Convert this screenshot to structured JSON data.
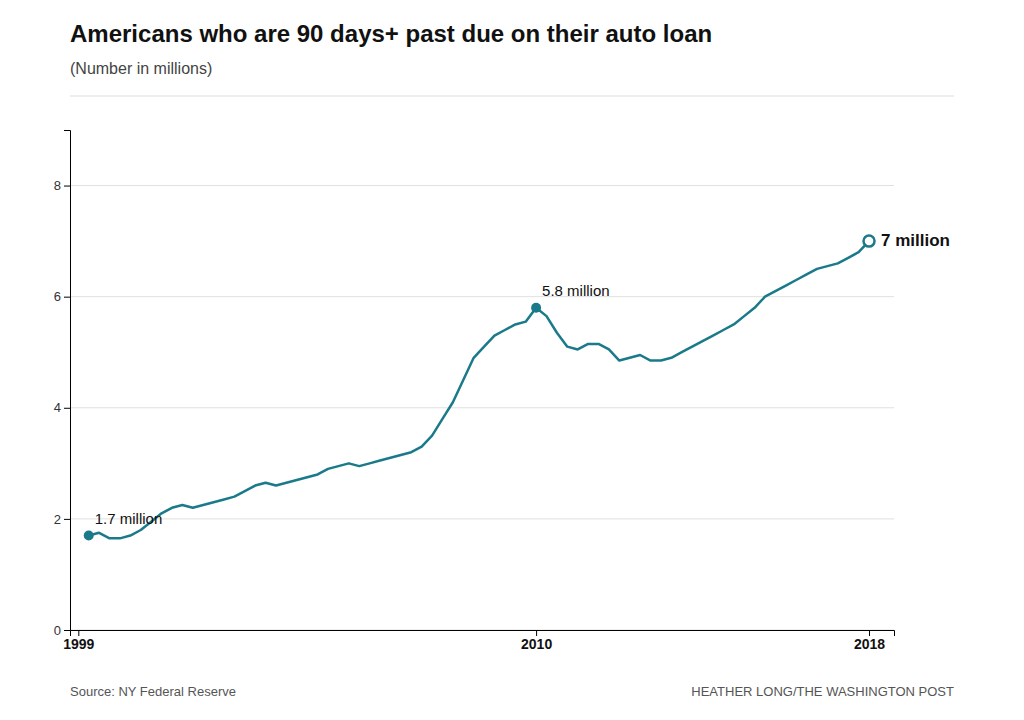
{
  "chart_data": {
    "type": "line",
    "title": "Americans who are 90 days+ past due on their auto loan",
    "subtitle": "(Number in millions)",
    "source": "Source: NY Federal Reserve",
    "credit": "HEATHER LONG/THE WASHINGTON POST",
    "color": "#1a7a8a",
    "x": [
      1999.25,
      1999.5,
      1999.75,
      2000.0,
      2000.25,
      2000.5,
      2000.75,
      2001.0,
      2001.25,
      2001.5,
      2001.75,
      2002.0,
      2002.25,
      2002.5,
      2002.75,
      2003.0,
      2003.25,
      2003.5,
      2003.75,
      2004.0,
      2004.25,
      2004.5,
      2004.75,
      2005.0,
      2005.25,
      2005.5,
      2005.75,
      2006.0,
      2006.25,
      2006.5,
      2006.75,
      2007.0,
      2007.25,
      2007.5,
      2007.75,
      2008.0,
      2008.25,
      2008.5,
      2008.75,
      2009.0,
      2009.25,
      2009.5,
      2009.75,
      2010.0,
      2010.25,
      2010.5,
      2010.75,
      2011.0,
      2011.25,
      2011.5,
      2011.75,
      2012.0,
      2012.25,
      2012.5,
      2012.75,
      2013.0,
      2013.25,
      2013.5,
      2013.75,
      2014.0,
      2014.25,
      2014.5,
      2014.75,
      2015.0,
      2015.25,
      2015.5,
      2015.75,
      2016.0,
      2016.25,
      2016.5,
      2016.75,
      2017.0,
      2017.25,
      2017.5,
      2017.75,
      2018.0
    ],
    "values": [
      1.7,
      1.75,
      1.65,
      1.65,
      1.7,
      1.8,
      1.95,
      2.1,
      2.2,
      2.25,
      2.2,
      2.25,
      2.3,
      2.35,
      2.4,
      2.5,
      2.6,
      2.65,
      2.6,
      2.65,
      2.7,
      2.75,
      2.8,
      2.9,
      2.95,
      3.0,
      2.95,
      3.0,
      3.05,
      3.1,
      3.15,
      3.2,
      3.3,
      3.5,
      3.8,
      4.1,
      4.5,
      4.9,
      5.1,
      5.3,
      5.4,
      5.5,
      5.55,
      5.8,
      5.65,
      5.35,
      5.1,
      5.05,
      5.15,
      5.15,
      5.05,
      4.85,
      4.9,
      4.95,
      4.85,
      4.85,
      4.9,
      5.0,
      5.1,
      5.2,
      5.3,
      5.4,
      5.5,
      5.65,
      5.8,
      6.0,
      6.1,
      6.2,
      6.3,
      6.4,
      6.5,
      6.55,
      6.6,
      6.7,
      6.8,
      7.0
    ],
    "xlim": [
      1998.8,
      2018.6
    ],
    "xticks": [
      1999,
      2010,
      2018
    ],
    "ylim": [
      0,
      9
    ],
    "yticks": [
      0,
      2,
      4,
      6,
      8
    ],
    "grid": true,
    "annotations": [
      {
        "text": "1.7 million",
        "x": 1999.25,
        "y": 1.7,
        "marker": "filled-circle"
      },
      {
        "text": "5.8 million",
        "x": 2010.0,
        "y": 5.8,
        "marker": "filled-circle"
      },
      {
        "text": "7 million",
        "x": 2018.0,
        "y": 7.0,
        "marker": "open-circle"
      }
    ]
  }
}
